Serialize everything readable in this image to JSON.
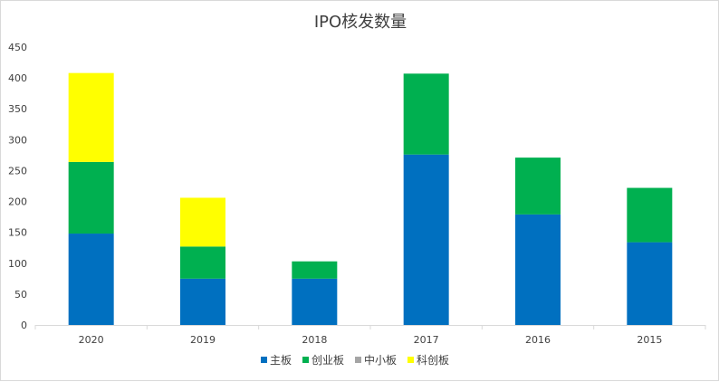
{
  "chart_data": {
    "type": "bar",
    "stacked": true,
    "title": "IPO核发数量",
    "xlabel": "",
    "ylabel": "",
    "categories": [
      "2020",
      "2019",
      "2018",
      "2017",
      "2016",
      "2015"
    ],
    "ylim": [
      0,
      450
    ],
    "yticks": [
      "0",
      "50",
      "100",
      "150",
      "200",
      "250",
      "300",
      "350",
      "400",
      "450"
    ],
    "grid": false,
    "legend_position": "bottom",
    "series": [
      {
        "name": "主板",
        "color": "#0070C0",
        "values": [
          148,
          75,
          75,
          276,
          179,
          134
        ]
      },
      {
        "name": "创业板",
        "color": "#00B050",
        "values": [
          116,
          52,
          28,
          131,
          92,
          88
        ]
      },
      {
        "name": "中小板",
        "color": "#A5A5A5",
        "values": [
          0,
          0,
          0,
          0,
          0,
          0
        ]
      },
      {
        "name": "科创板",
        "color": "#FFFF00",
        "values": [
          144,
          79,
          0,
          0,
          0,
          0
        ]
      }
    ]
  }
}
